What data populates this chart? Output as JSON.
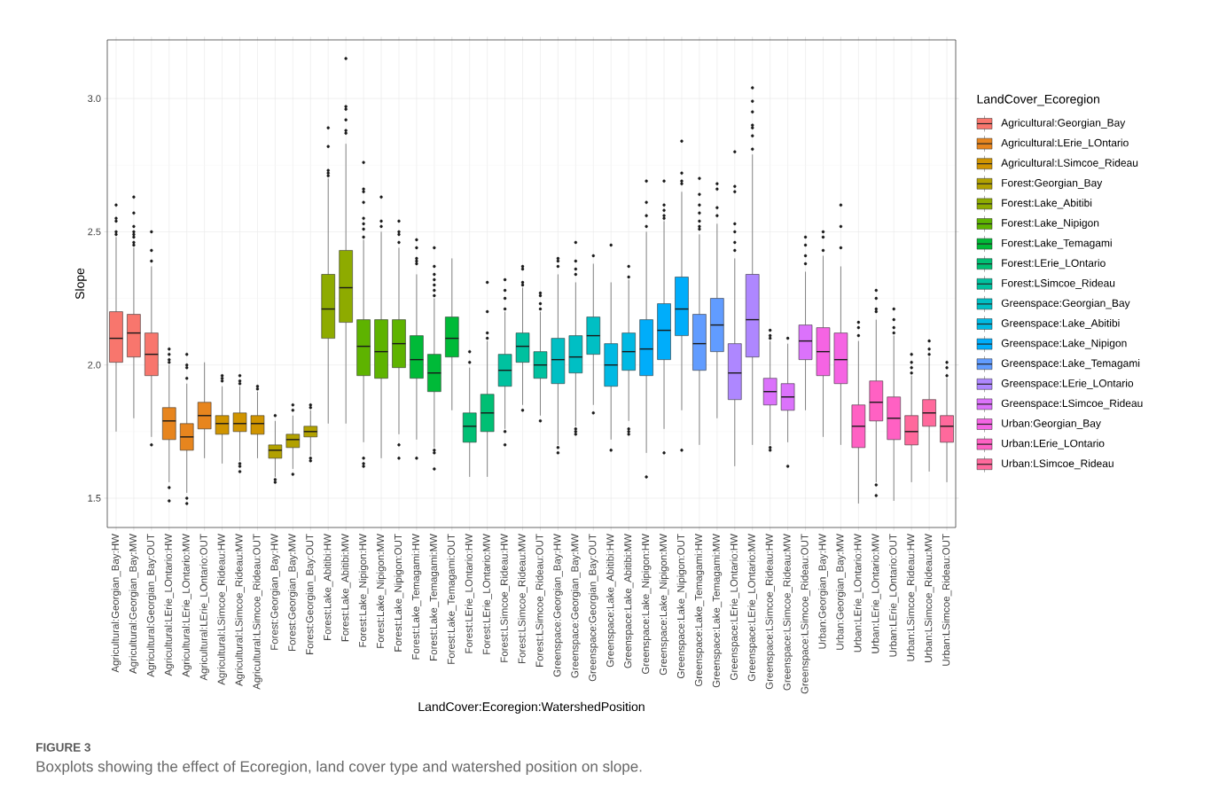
{
  "chart_data": {
    "type": "box",
    "xlabel": "LandCover:Ecoregion:WatershedPosition",
    "ylabel": "Slope",
    "legend_title": "LandCover_Ecoregion",
    "annotations": [
      "FIGURE 3",
      "Boxplots showing the effect of Ecoregion, land cover type and watershed position on slope."
    ],
    "categories": [
      "Agricultural:Georgian_Bay:HW",
      "Agricultural:Georgian_Bay:MW",
      "Agricultural:Georgian_Bay:OUT",
      "Agricultural:LErie_LOntario:HW",
      "Agricultural:LErie_LOntario:MW",
      "Agricultural:LErie_LOntario:OUT",
      "Agricultural:LSimcoe_Rideau:HW",
      "Agricultural:LSimcoe_Rideau:MW",
      "Agricultural:LSimcoe_Rideau:OUT",
      "Forest:Georgian_Bay:HW",
      "Forest:Georgian_Bay:MW",
      "Forest:Georgian_Bay:OUT",
      "Forest:Lake_Abitibi:HW",
      "Forest:Lake_Abitibi:MW",
      "Forest:Lake_Nipigon:HW",
      "Forest:Lake_Nipigon:MW",
      "Forest:Lake_Nipigon:OUT",
      "Forest:Lake_Temagami:HW",
      "Forest:Lake_Temagami:MW",
      "Forest:Lake_Temagami:OUT",
      "Forest:LErie_LOntario:HW",
      "Forest:LErie_LOntario:MW",
      "Forest:LSimcoe_Rideau:HW",
      "Forest:LSimcoe_Rideau:MW",
      "Forest:LSimcoe_Rideau:OUT",
      "Greenspace:Georgian_Bay:HW",
      "Greenspace:Georgian_Bay:MW",
      "Greenspace:Georgian_Bay:OUT",
      "Greenspace:Lake_Abitibi:HW",
      "Greenspace:Lake_Abitibi:MW",
      "Greenspace:Lake_Nipigon:HW",
      "Greenspace:Lake_Nipigon:MW",
      "Greenspace:Lake_Nipigon:OUT",
      "Greenspace:Lake_Temagami:HW",
      "Greenspace:Lake_Temagami:MW",
      "Greenspace:LErie_LOntario:HW",
      "Greenspace:LErie_LOntario:MW",
      "Greenspace:LSimcoe_Rideau:HW",
      "Greenspace:LSimcoe_Rideau:MW",
      "Greenspace:LSimcoe_Rideau:OUT",
      "Urban:Georgian_Bay:HW",
      "Urban:Georgian_Bay:MW",
      "Urban:LErie_LOntario:HW",
      "Urban:LErie_LOntario:MW",
      "Urban:LErie_LOntario:OUT",
      "Urban:LSimcoe_Rideau:HW",
      "Urban:LSimcoe_Rideau:MW",
      "Urban:LSimcoe_Rideau:OUT"
    ],
    "ylim": [
      1.39,
      3.22
    ],
    "yticks": [
      {
        "value": 1.5,
        "label": "1.5"
      },
      {
        "value": 2.0,
        "label": "2.0"
      },
      {
        "value": 2.5,
        "label": "2.5"
      },
      {
        "value": 3.0,
        "label": "3.0"
      }
    ],
    "grid": true,
    "legend": "right",
    "series": [
      {
        "name": "Agricultural:Georgian_Bay",
        "color": "#F8766D",
        "boxes": [
          {
            "low": 1.75,
            "q1": 2.01,
            "median": 2.1,
            "q3": 2.2,
            "high": 2.48,
            "outliers": [
              2.6,
              2.55,
              2.54,
              2.5,
              2.49
            ]
          },
          {
            "low": 1.8,
            "q1": 2.03,
            "median": 2.12,
            "q3": 2.19,
            "high": 2.44,
            "outliers": [
              2.63,
              2.57,
              2.52,
              2.5,
              2.49,
              2.48,
              2.46,
              2.45
            ]
          },
          {
            "low": 1.73,
            "q1": 1.96,
            "median": 2.04,
            "q3": 2.12,
            "high": 2.37,
            "outliers": [
              2.5,
              2.43,
              2.39,
              1.7
            ]
          },
          null,
          null,
          null,
          null,
          null,
          null,
          null,
          null,
          null,
          null,
          null,
          null,
          null,
          null,
          null,
          null,
          null,
          null,
          null,
          null,
          null,
          null,
          null,
          null,
          null,
          null,
          null,
          null,
          null,
          null,
          null,
          null,
          null,
          null,
          null,
          null,
          null,
          null,
          null,
          null,
          null,
          null,
          null,
          null,
          null
        ]
      },
      {
        "name": "Agricultural:LErie_LOntario",
        "color": "#E7851E",
        "boxes": [
          null,
          null,
          null,
          {
            "low": 1.56,
            "q1": 1.72,
            "median": 1.79,
            "q3": 1.84,
            "high": 2.0,
            "outliers": [
              2.06,
              2.04,
              2.02,
              2.01,
              1.54,
              1.49
            ]
          },
          {
            "low": 1.52,
            "q1": 1.68,
            "median": 1.73,
            "q3": 1.78,
            "high": 1.93,
            "outliers": [
              2.04,
              2.0,
              1.99,
              1.95,
              1.5,
              1.48
            ]
          },
          {
            "low": 1.65,
            "q1": 1.76,
            "median": 1.81,
            "q3": 1.86,
            "high": 2.01
          },
          null,
          null,
          null,
          null,
          null,
          null,
          null,
          null,
          null,
          null,
          null,
          null,
          null,
          null,
          null,
          null,
          null,
          null,
          null,
          null,
          null,
          null,
          null,
          null,
          null,
          null,
          null,
          null,
          null,
          null,
          null,
          null,
          null,
          null,
          null,
          null,
          null,
          null,
          null,
          null,
          null,
          null
        ]
      },
      {
        "name": "Agricultural:LSimcoe_Rideau",
        "color": "#D09400",
        "boxes": [
          null,
          null,
          null,
          null,
          null,
          null,
          {
            "low": 1.63,
            "q1": 1.74,
            "median": 1.78,
            "q3": 1.81,
            "high": 1.92,
            "outliers": [
              1.96,
              1.95,
              1.94
            ]
          },
          {
            "low": 1.64,
            "q1": 1.75,
            "median": 1.78,
            "q3": 1.82,
            "high": 1.92,
            "outliers": [
              1.96,
              1.94,
              1.93,
              1.63,
              1.62,
              1.6
            ]
          },
          {
            "low": 1.65,
            "q1": 1.74,
            "median": 1.78,
            "q3": 1.81,
            "high": 1.9,
            "outliers": [
              1.92,
              1.91
            ]
          },
          null,
          null,
          null,
          null,
          null,
          null,
          null,
          null,
          null,
          null,
          null,
          null,
          null,
          null,
          null,
          null,
          null,
          null,
          null,
          null,
          null,
          null,
          null,
          null,
          null,
          null,
          null,
          null,
          null,
          null,
          null,
          null,
          null,
          null,
          null,
          null,
          null,
          null,
          null
        ]
      },
      {
        "name": "Forest:Georgian_Bay",
        "color": "#B2A100",
        "boxes": [
          null,
          null,
          null,
          null,
          null,
          null,
          null,
          null,
          null,
          {
            "low": 1.58,
            "q1": 1.65,
            "median": 1.68,
            "q3": 1.7,
            "high": 1.79,
            "outliers": [
              1.81,
              1.57,
              1.56
            ]
          },
          {
            "low": 1.61,
            "q1": 1.69,
            "median": 1.72,
            "q3": 1.74,
            "high": 1.81,
            "outliers": [
              1.85,
              1.83,
              1.59
            ]
          },
          {
            "low": 1.66,
            "q1": 1.73,
            "median": 1.75,
            "q3": 1.77,
            "high": 1.83,
            "outliers": [
              1.85,
              1.84,
              1.65,
              1.64
            ]
          },
          null,
          null,
          null,
          null,
          null,
          null,
          null,
          null,
          null,
          null,
          null,
          null,
          null,
          null,
          null,
          null,
          null,
          null,
          null,
          null,
          null,
          null,
          null,
          null,
          null,
          null,
          null,
          null,
          null,
          null,
          null,
          null,
          null,
          null,
          null,
          null
        ]
      },
      {
        "name": "Forest:Lake_Abitibi",
        "color": "#8EAB00",
        "boxes": [
          null,
          null,
          null,
          null,
          null,
          null,
          null,
          null,
          null,
          null,
          null,
          null,
          {
            "low": 1.78,
            "q1": 2.1,
            "median": 2.21,
            "q3": 2.34,
            "high": 2.7,
            "outliers": [
              2.89,
              2.82,
              2.73,
              2.72,
              2.71
            ]
          },
          {
            "low": 1.78,
            "q1": 2.16,
            "median": 2.29,
            "q3": 2.43,
            "high": 2.83,
            "outliers": [
              3.15,
              2.97,
              2.96,
              2.92,
              2.88,
              2.87
            ]
          },
          null,
          null,
          null,
          null,
          null,
          null,
          null,
          null,
          null,
          null,
          null,
          null,
          null,
          null,
          null,
          null,
          null,
          null,
          null,
          null,
          null,
          null,
          null,
          null,
          null,
          null,
          null,
          null,
          null,
          null,
          null,
          null,
          null,
          null
        ]
      },
      {
        "name": "Forest:Lake_Nipigon",
        "color": "#5EB300",
        "boxes": [
          null,
          null,
          null,
          null,
          null,
          null,
          null,
          null,
          null,
          null,
          null,
          null,
          null,
          null,
          {
            "low": 1.71,
            "q1": 1.96,
            "median": 2.07,
            "q3": 2.17,
            "high": 2.47,
            "outliers": [
              2.76,
              2.66,
              2.65,
              2.61,
              2.55,
              2.53,
              2.51,
              2.48,
              1.65,
              1.63,
              1.62
            ]
          },
          {
            "low": 1.65,
            "q1": 1.95,
            "median": 2.05,
            "q3": 2.17,
            "high": 2.5,
            "outliers": [
              2.63,
              2.54,
              2.52
            ]
          },
          {
            "low": 1.74,
            "q1": 1.99,
            "median": 2.08,
            "q3": 2.17,
            "high": 2.44,
            "outliers": [
              2.54,
              2.5,
              2.49,
              2.46,
              1.7,
              1.65
            ]
          },
          null,
          null,
          null,
          null,
          null,
          null,
          null,
          null,
          null,
          null,
          null,
          null,
          null,
          null,
          null,
          null,
          null,
          null,
          null,
          null,
          null,
          null,
          null,
          null,
          null,
          null,
          null,
          null,
          null,
          null,
          null
        ]
      },
      {
        "name": "Forest:Lake_Temagami",
        "color": "#00BA38",
        "boxes": [
          null,
          null,
          null,
          null,
          null,
          null,
          null,
          null,
          null,
          null,
          null,
          null,
          null,
          null,
          null,
          null,
          null,
          {
            "low": 1.72,
            "q1": 1.95,
            "median": 2.02,
            "q3": 2.11,
            "high": 2.34,
            "outliers": [
              2.47,
              2.44,
              2.4,
              2.39,
              2.38,
              1.65
            ]
          },
          {
            "low": 1.69,
            "q1": 1.9,
            "median": 1.97,
            "q3": 2.04,
            "high": 2.25,
            "outliers": [
              2.44,
              2.37,
              2.34,
              2.32,
              2.3,
              2.28,
              2.26,
              1.68,
              1.67,
              1.61
            ]
          },
          {
            "low": 1.83,
            "q1": 2.03,
            "median": 2.1,
            "q3": 2.18,
            "high": 2.4
          },
          null,
          null,
          null,
          null,
          null,
          null,
          null,
          null,
          null,
          null,
          null,
          null,
          null,
          null,
          null,
          null,
          null,
          null,
          null,
          null,
          null,
          null,
          null,
          null,
          null,
          null,
          null,
          null
        ]
      },
      {
        "name": "Forest:LErie_LOntario",
        "color": "#00BF74",
        "boxes": [
          null,
          null,
          null,
          null,
          null,
          null,
          null,
          null,
          null,
          null,
          null,
          null,
          null,
          null,
          null,
          null,
          null,
          null,
          null,
          null,
          {
            "low": 1.58,
            "q1": 1.71,
            "median": 1.77,
            "q3": 1.82,
            "high": 1.99,
            "outliers": [
              2.05,
              2.01
            ]
          },
          {
            "low": 1.58,
            "q1": 1.75,
            "median": 1.82,
            "q3": 1.89,
            "high": 2.09,
            "outliers": [
              2.31,
              2.2,
              2.12,
              2.1
            ]
          },
          null,
          null,
          null,
          null,
          null,
          null,
          null,
          null,
          null,
          null,
          null,
          null,
          null,
          null,
          null,
          null,
          null,
          null,
          null,
          null,
          null,
          null,
          null,
          null,
          null,
          null
        ]
      },
      {
        "name": "Forest:LSimcoe_Rideau",
        "color": "#00C19F",
        "boxes": [
          null,
          null,
          null,
          null,
          null,
          null,
          null,
          null,
          null,
          null,
          null,
          null,
          null,
          null,
          null,
          null,
          null,
          null,
          null,
          null,
          null,
          null,
          {
            "low": 1.76,
            "q1": 1.92,
            "median": 1.98,
            "q3": 2.04,
            "high": 2.2,
            "outliers": [
              2.32,
              2.28,
              2.25,
              2.21,
              1.75,
              1.7
            ]
          },
          {
            "low": 1.85,
            "q1": 2.01,
            "median": 2.07,
            "q3": 2.12,
            "high": 2.29,
            "outliers": [
              2.37,
              2.36,
              2.31,
              2.3,
              1.83
            ]
          },
          {
            "low": 1.81,
            "q1": 1.95,
            "median": 2.0,
            "q3": 2.05,
            "high": 2.2,
            "outliers": [
              2.27,
              2.26,
              2.23,
              2.21,
              1.79
            ]
          },
          null,
          null,
          null,
          null,
          null,
          null,
          null,
          null,
          null,
          null,
          null,
          null,
          null,
          null,
          null,
          null,
          null,
          null,
          null,
          null,
          null,
          null,
          null
        ]
      },
      {
        "name": "Greenspace:Georgian_Bay",
        "color": "#00BFC4",
        "boxes": [
          null,
          null,
          null,
          null,
          null,
          null,
          null,
          null,
          null,
          null,
          null,
          null,
          null,
          null,
          null,
          null,
          null,
          null,
          null,
          null,
          null,
          null,
          null,
          null,
          null,
          {
            "low": 1.7,
            "q1": 1.93,
            "median": 2.02,
            "q3": 2.1,
            "high": 2.34,
            "outliers": [
              2.4,
              2.39,
              2.37,
              1.69,
              1.67
            ]
          },
          {
            "low": 1.77,
            "q1": 1.97,
            "median": 2.03,
            "q3": 2.11,
            "high": 2.31,
            "outliers": [
              2.46,
              2.39,
              2.36,
              2.34,
              1.76,
              1.75,
              1.74
            ]
          },
          {
            "low": 1.85,
            "q1": 2.04,
            "median": 2.11,
            "q3": 2.18,
            "high": 2.38,
            "outliers": [
              2.41,
              1.82
            ]
          },
          null,
          null,
          null,
          null,
          null,
          null,
          null,
          null,
          null,
          null,
          null,
          null,
          null,
          null,
          null,
          null,
          null,
          null,
          null,
          null
        ]
      },
      {
        "name": "Greenspace:Lake_Abitibi",
        "color": "#00B9E3",
        "boxes": [
          null,
          null,
          null,
          null,
          null,
          null,
          null,
          null,
          null,
          null,
          null,
          null,
          null,
          null,
          null,
          null,
          null,
          null,
          null,
          null,
          null,
          null,
          null,
          null,
          null,
          null,
          null,
          null,
          {
            "low": 1.72,
            "q1": 1.92,
            "median": 2.0,
            "q3": 2.08,
            "high": 2.31,
            "outliers": [
              2.45,
              1.68
            ]
          },
          {
            "low": 1.79,
            "q1": 1.98,
            "median": 2.05,
            "q3": 2.12,
            "high": 2.32,
            "outliers": [
              2.37,
              2.33,
              1.76,
              1.75,
              1.74
            ]
          },
          null,
          null,
          null,
          null,
          null,
          null,
          null,
          null,
          null,
          null,
          null,
          null,
          null,
          null,
          null,
          null,
          null,
          null
        ]
      },
      {
        "name": "Greenspace:Lake_Nipigon",
        "color": "#00ADFA",
        "boxes": [
          null,
          null,
          null,
          null,
          null,
          null,
          null,
          null,
          null,
          null,
          null,
          null,
          null,
          null,
          null,
          null,
          null,
          null,
          null,
          null,
          null,
          null,
          null,
          null,
          null,
          null,
          null,
          null,
          null,
          null,
          {
            "low": 1.67,
            "q1": 1.96,
            "median": 2.06,
            "q3": 2.17,
            "high": 2.5,
            "outliers": [
              2.69,
              2.61,
              2.56,
              2.52,
              1.58
            ]
          },
          {
            "low": 1.76,
            "q1": 2.02,
            "median": 2.13,
            "q3": 2.23,
            "high": 2.54,
            "outliers": [
              2.69,
              2.6,
              2.58,
              2.56,
              2.55,
              1.67
            ]
          },
          {
            "low": 1.83,
            "q1": 2.11,
            "median": 2.21,
            "q3": 2.33,
            "high": 2.65,
            "outliers": [
              2.84,
              2.72,
              2.69,
              2.68,
              1.68
            ]
          },
          null,
          null,
          null,
          null,
          null,
          null,
          null,
          null,
          null,
          null,
          null,
          null,
          null,
          null,
          null
        ]
      },
      {
        "name": "Greenspace:Lake_Temagami",
        "color": "#619CFF",
        "boxes": [
          null,
          null,
          null,
          null,
          null,
          null,
          null,
          null,
          null,
          null,
          null,
          null,
          null,
          null,
          null,
          null,
          null,
          null,
          null,
          null,
          null,
          null,
          null,
          null,
          null,
          null,
          null,
          null,
          null,
          null,
          null,
          null,
          null,
          {
            "low": 1.7,
            "q1": 1.98,
            "median": 2.08,
            "q3": 2.19,
            "high": 2.49,
            "outliers": [
              2.7,
              2.64,
              2.6,
              2.57,
              2.54,
              2.52,
              2.51
            ]
          },
          {
            "low": 1.8,
            "q1": 2.05,
            "median": 2.15,
            "q3": 2.25,
            "high": 2.53,
            "outliers": [
              2.68,
              2.66,
              2.59,
              2.56
            ]
          },
          null,
          null,
          null,
          null,
          null,
          null,
          null,
          null,
          null,
          null,
          null,
          null,
          null
        ]
      },
      {
        "name": "Greenspace:LErie_LOntario",
        "color": "#AE87FF",
        "boxes": [
          null,
          null,
          null,
          null,
          null,
          null,
          null,
          null,
          null,
          null,
          null,
          null,
          null,
          null,
          null,
          null,
          null,
          null,
          null,
          null,
          null,
          null,
          null,
          null,
          null,
          null,
          null,
          null,
          null,
          null,
          null,
          null,
          null,
          null,
          null,
          {
            "low": 1.62,
            "q1": 1.87,
            "median": 1.97,
            "q3": 2.08,
            "high": 2.4,
            "outliers": [
              2.8,
              2.67,
              2.65,
              2.53,
              2.5,
              2.46,
              2.43
            ]
          },
          {
            "low": 1.7,
            "q1": 2.03,
            "median": 2.17,
            "q3": 2.34,
            "high": 2.79,
            "outliers": [
              3.04,
              2.99,
              2.95,
              2.9,
              2.89,
              2.86,
              2.81
            ]
          },
          null,
          null,
          null,
          null,
          null,
          null,
          null,
          null,
          null,
          null,
          null
        ]
      },
      {
        "name": "Greenspace:LSimcoe_Rideau",
        "color": "#DB72FB",
        "boxes": [
          null,
          null,
          null,
          null,
          null,
          null,
          null,
          null,
          null,
          null,
          null,
          null,
          null,
          null,
          null,
          null,
          null,
          null,
          null,
          null,
          null,
          null,
          null,
          null,
          null,
          null,
          null,
          null,
          null,
          null,
          null,
          null,
          null,
          null,
          null,
          null,
          null,
          {
            "low": 1.7,
            "q1": 1.85,
            "median": 1.9,
            "q3": 1.95,
            "high": 2.09,
            "outliers": [
              2.13,
              2.11,
              2.1,
              1.69,
              1.68
            ]
          },
          {
            "low": 1.71,
            "q1": 1.83,
            "median": 1.88,
            "q3": 1.93,
            "high": 2.08,
            "outliers": [
              2.1,
              1.62
            ]
          },
          {
            "low": 1.83,
            "q1": 2.02,
            "median": 2.09,
            "q3": 2.15,
            "high": 2.35,
            "outliers": [
              2.48,
              2.45,
              2.41,
              2.38
            ]
          },
          null,
          null,
          null,
          null,
          null,
          null,
          null,
          null
        ]
      },
      {
        "name": "Urban:Georgian_Bay",
        "color": "#F564E3",
        "boxes": [
          null,
          null,
          null,
          null,
          null,
          null,
          null,
          null,
          null,
          null,
          null,
          null,
          null,
          null,
          null,
          null,
          null,
          null,
          null,
          null,
          null,
          null,
          null,
          null,
          null,
          null,
          null,
          null,
          null,
          null,
          null,
          null,
          null,
          null,
          null,
          null,
          null,
          null,
          null,
          null,
          {
            "low": 1.73,
            "q1": 1.96,
            "median": 2.05,
            "q3": 2.14,
            "high": 2.41,
            "outliers": [
              2.5,
              2.48,
              2.43
            ]
          },
          {
            "low": 1.7,
            "q1": 1.93,
            "median": 2.02,
            "q3": 2.12,
            "high": 2.37,
            "outliers": [
              2.6,
              2.52,
              2.44
            ]
          },
          null,
          null,
          null,
          null,
          null,
          null
        ]
      },
      {
        "name": "Urban:LErie_LOntario",
        "color": "#FF61C3",
        "boxes": [
          null,
          null,
          null,
          null,
          null,
          null,
          null,
          null,
          null,
          null,
          null,
          null,
          null,
          null,
          null,
          null,
          null,
          null,
          null,
          null,
          null,
          null,
          null,
          null,
          null,
          null,
          null,
          null,
          null,
          null,
          null,
          null,
          null,
          null,
          null,
          null,
          null,
          null,
          null,
          null,
          null,
          null,
          {
            "low": 1.48,
            "q1": 1.69,
            "median": 1.77,
            "q3": 1.85,
            "high": 2.09,
            "outliers": [
              2.16,
              2.14,
              2.11
            ]
          },
          {
            "low": 1.56,
            "q1": 1.79,
            "median": 1.86,
            "q3": 1.94,
            "high": 2.17,
            "outliers": [
              2.28,
              2.25,
              2.21,
              2.2,
              1.55,
              1.51
            ]
          },
          {
            "low": 1.49,
            "q1": 1.72,
            "median": 1.8,
            "q3": 1.88,
            "high": 2.11,
            "outliers": [
              2.21,
              2.17,
              2.14,
              2.12
            ]
          },
          null,
          null,
          null
        ]
      },
      {
        "name": "Urban:LSimcoe_Rideau",
        "color": "#FF699C",
        "boxes": [
          null,
          null,
          null,
          null,
          null,
          null,
          null,
          null,
          null,
          null,
          null,
          null,
          null,
          null,
          null,
          null,
          null,
          null,
          null,
          null,
          null,
          null,
          null,
          null,
          null,
          null,
          null,
          null,
          null,
          null,
          null,
          null,
          null,
          null,
          null,
          null,
          null,
          null,
          null,
          null,
          null,
          null,
          null,
          null,
          null,
          {
            "low": 1.56,
            "q1": 1.7,
            "median": 1.75,
            "q3": 1.81,
            "high": 1.96,
            "outliers": [
              2.04,
              2.01,
              1.99,
              1.97
            ]
          },
          {
            "low": 1.6,
            "q1": 1.77,
            "median": 1.82,
            "q3": 1.87,
            "high": 2.03,
            "outliers": [
              2.09,
              2.06,
              2.04
            ]
          },
          {
            "low": 1.56,
            "q1": 1.71,
            "median": 1.77,
            "q3": 1.81,
            "high": 1.95,
            "outliers": [
              2.01,
              1.99,
              1.96
            ]
          }
        ]
      }
    ]
  }
}
